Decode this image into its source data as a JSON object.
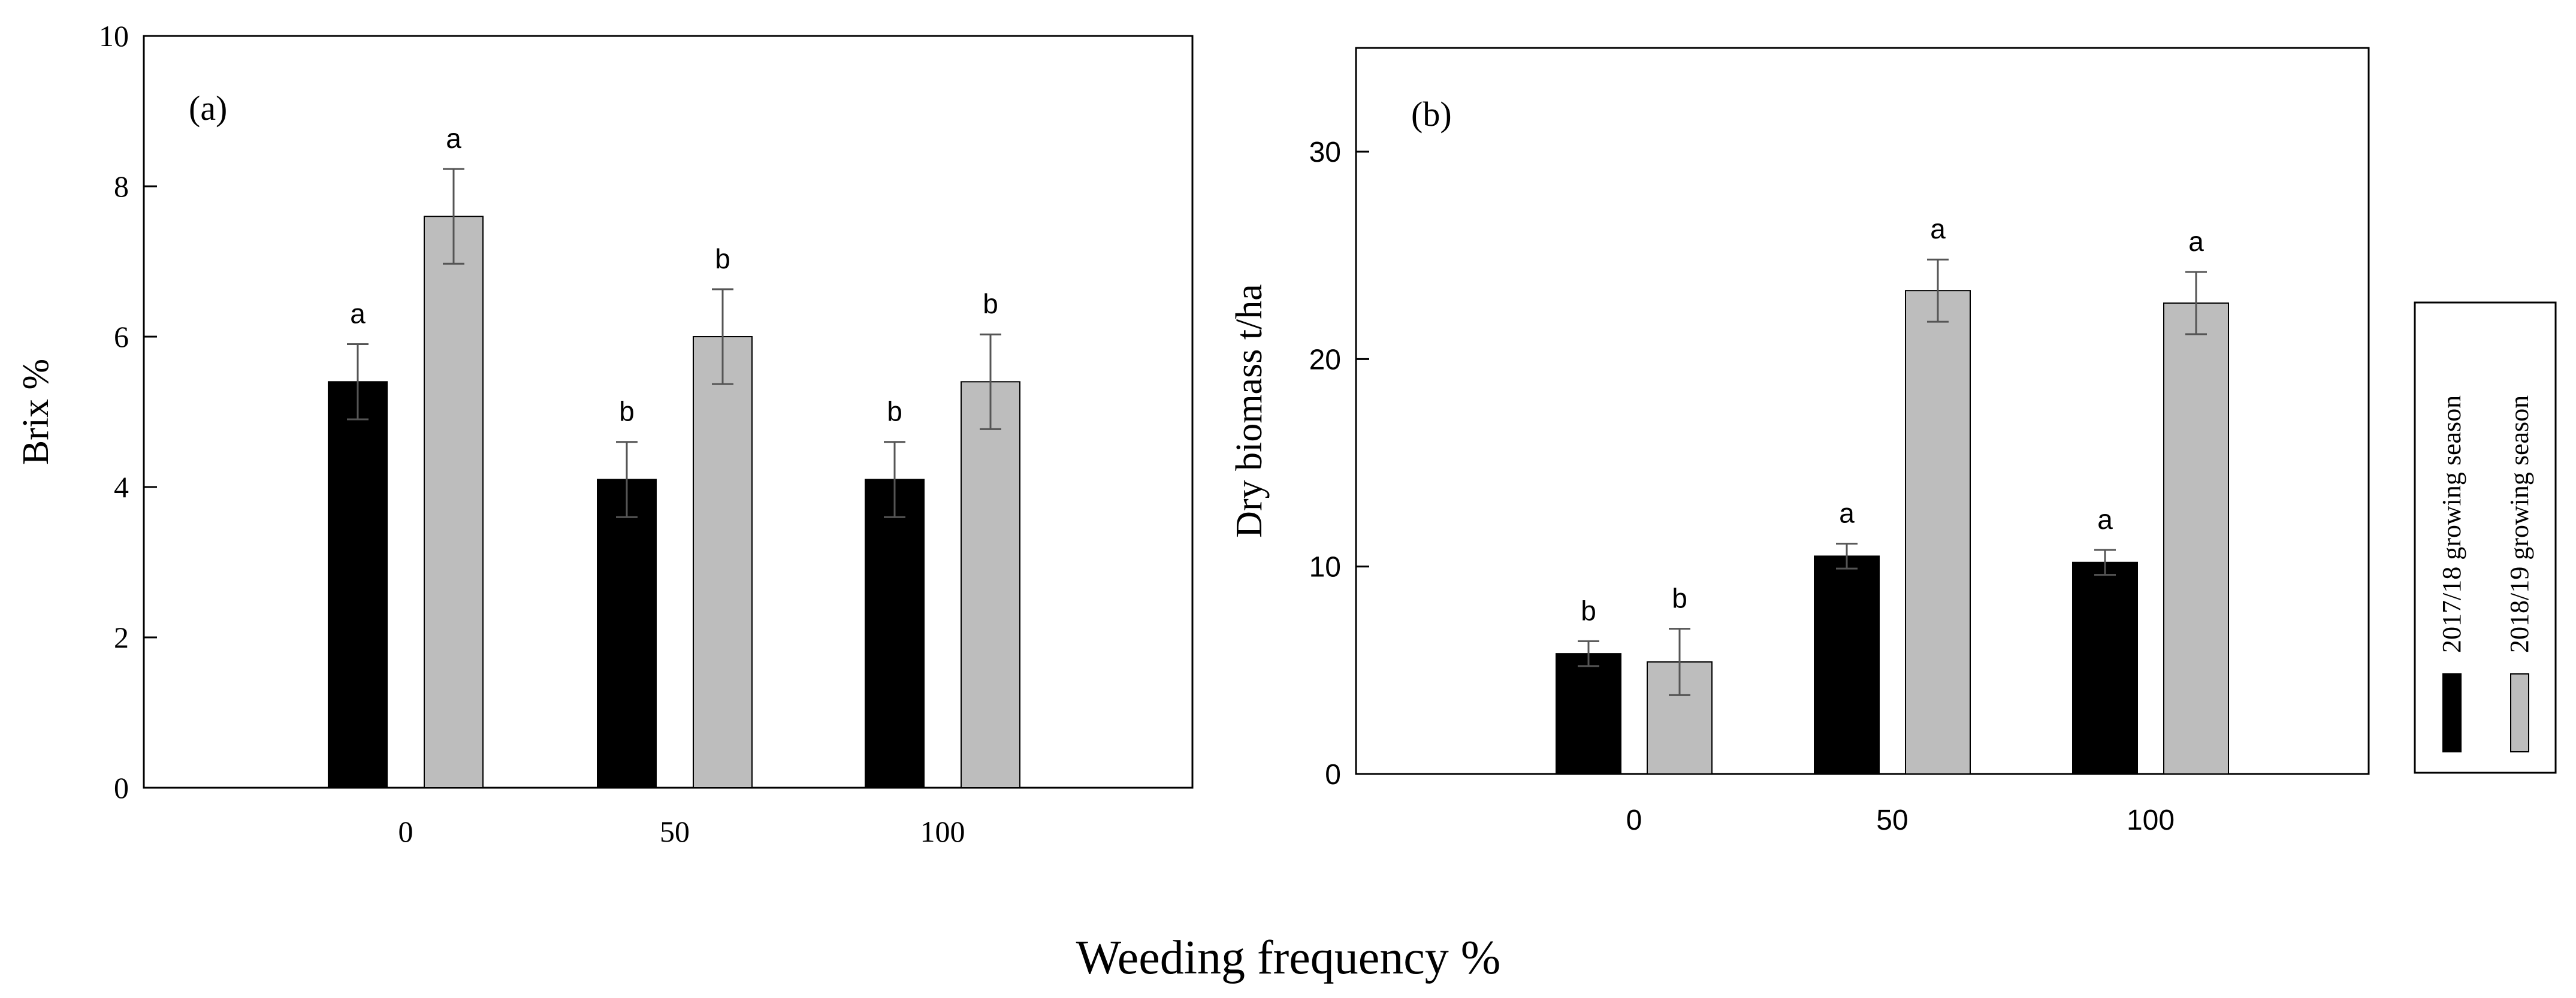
{
  "figure": {
    "shared_xlabel": "Weeding frequency %"
  },
  "chart_data": [
    {
      "type": "bar",
      "panel_label": "(a)",
      "title": "",
      "xlabel": "",
      "ylabel": "Brix %",
      "categories": [
        "0",
        "50",
        "100"
      ],
      "ylim": [
        0,
        10
      ],
      "yticks": [
        0,
        2,
        4,
        6,
        8,
        10
      ],
      "series": [
        {
          "name": "2017/18 growing season",
          "color": "#000000",
          "values": [
            5.4,
            4.1,
            4.1
          ],
          "errors": [
            0.5,
            0.5,
            0.5
          ],
          "letters": [
            "a",
            "b",
            "b"
          ]
        },
        {
          "name": "2018/19 growing season",
          "color": "#bdbdbd",
          "values": [
            7.6,
            6.0,
            5.4
          ],
          "errors": [
            0.63,
            0.63,
            0.63
          ],
          "letters": [
            "a",
            "b",
            "b"
          ]
        }
      ]
    },
    {
      "type": "bar",
      "panel_label": "(b)",
      "title": "",
      "xlabel": "",
      "ylabel": "Dry biomass t/ha",
      "categories": [
        "0",
        "50",
        "100"
      ],
      "ylim": [
        0,
        35
      ],
      "yticks": [
        0,
        10,
        20,
        30
      ],
      "series": [
        {
          "name": "2017/18 growing season",
          "color": "#000000",
          "values": [
            5.8,
            10.5,
            10.2
          ],
          "errors": [
            0.6,
            0.6,
            0.6
          ],
          "letters": [
            "b",
            "a",
            "a"
          ]
        },
        {
          "name": "2018/19 growing season",
          "color": "#bdbdbd",
          "values": [
            5.4,
            23.3,
            22.7
          ],
          "errors": [
            1.6,
            1.5,
            1.5
          ],
          "letters": [
            "b",
            "a",
            "a"
          ]
        }
      ],
      "legend": {
        "position": "right",
        "orientation": "vertical"
      }
    }
  ]
}
